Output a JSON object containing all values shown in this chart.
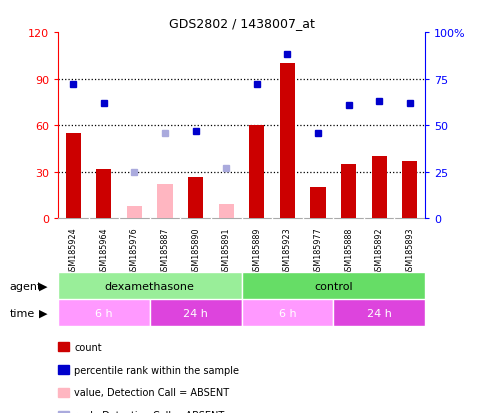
{
  "title": "GDS2802 / 1438007_at",
  "samples": [
    "GSM185924",
    "GSM185964",
    "GSM185976",
    "GSM185887",
    "GSM185890",
    "GSM185891",
    "GSM185889",
    "GSM185923",
    "GSM185977",
    "GSM185888",
    "GSM185892",
    "GSM185893"
  ],
  "counts": [
    55,
    32,
    null,
    null,
    27,
    null,
    60,
    100,
    20,
    35,
    40,
    37
  ],
  "counts_absent": [
    null,
    null,
    8,
    22,
    null,
    9,
    null,
    null,
    null,
    null,
    null,
    null
  ],
  "pct_ranks": [
    72,
    62,
    null,
    null,
    47,
    null,
    72,
    88,
    46,
    61,
    63,
    62
  ],
  "pct_ranks_absent": [
    null,
    null,
    25,
    46,
    null,
    27,
    null,
    null,
    null,
    null,
    null,
    null
  ],
  "left_ylim": [
    0,
    120
  ],
  "left_yticks": [
    0,
    30,
    60,
    90,
    120
  ],
  "left_yticklabels": [
    "0",
    "30",
    "60",
    "90",
    "120"
  ],
  "right_ylim": [
    0,
    100
  ],
  "right_yticks": [
    0,
    25,
    50,
    75,
    100
  ],
  "right_yticklabels": [
    "0",
    "25",
    "50",
    "75",
    "100%"
  ],
  "hlines": [
    30,
    60,
    90
  ],
  "bar_color": "#cc0000",
  "bar_absent_color": "#ffb6c1",
  "rank_color": "#0000cc",
  "rank_absent_color": "#aaaadd",
  "plot_bg": "#ffffff",
  "xtick_bg": "#cccccc",
  "agent_dexa_color": "#99ee99",
  "agent_ctrl_color": "#66dd66",
  "time_6h_color": "#ff99ff",
  "time_24h_color": "#dd44dd",
  "legend_items": [
    {
      "label": "count",
      "color": "#cc0000"
    },
    {
      "label": "percentile rank within the sample",
      "color": "#0000cc"
    },
    {
      "label": "value, Detection Call = ABSENT",
      "color": "#ffb6c1"
    },
    {
      "label": "rank, Detection Call = ABSENT",
      "color": "#aaaadd"
    }
  ],
  "dexamethasone_span": [
    0,
    5
  ],
  "control_span": [
    6,
    11
  ],
  "time_6h_dexa": [
    0,
    2
  ],
  "time_24h_dexa": [
    3,
    5
  ],
  "time_6h_ctrl": [
    6,
    8
  ],
  "time_24h_ctrl": [
    9,
    11
  ]
}
